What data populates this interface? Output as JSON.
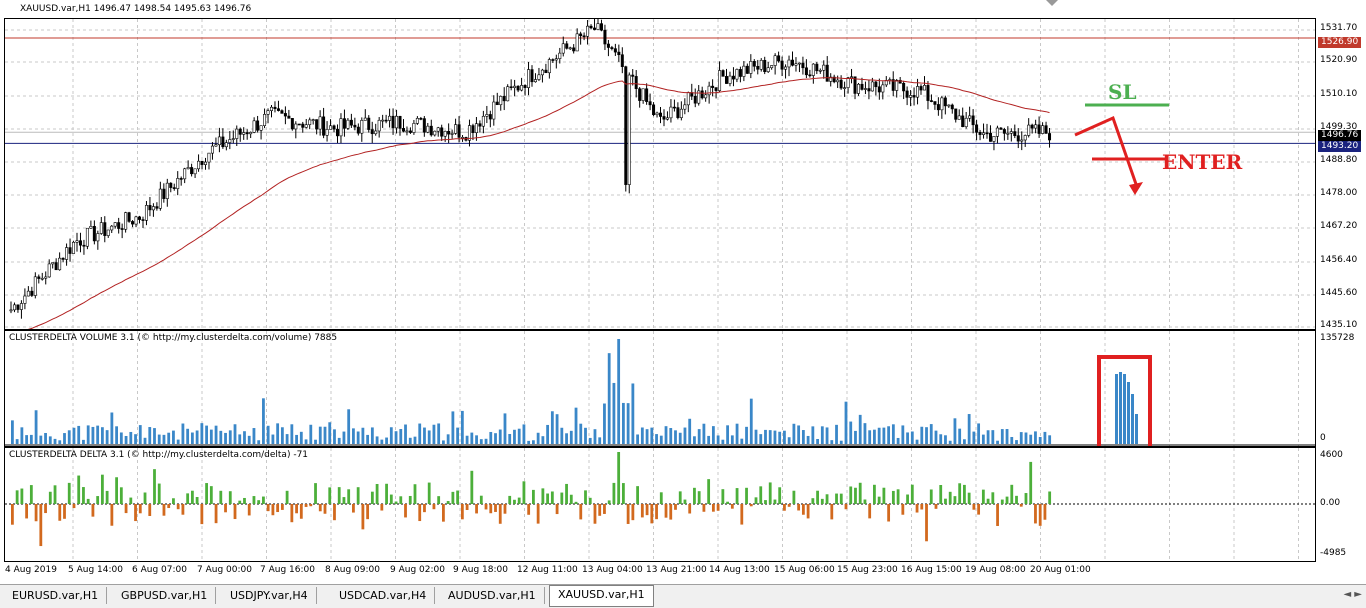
{
  "header": {
    "title": "XAUUSD.var,H1  1496.47 1498.54 1495.63 1496.76"
  },
  "price_scale": [
    "1531.70",
    "1520.90",
    "1510.10",
    "1499.30",
    "1488.80",
    "1478.00",
    "1467.20",
    "1456.40",
    "1445.60",
    "1435.10"
  ],
  "price_tags": {
    "resistance": "1526.90",
    "current": "1496.76",
    "support": "1493.20"
  },
  "volume_indicator": {
    "title": "CLUSTERDELTA VOLUME 3.1 (© http://my.clusterdelta.com/volume) 7885",
    "max_label": "135728",
    "min_label": "0"
  },
  "delta_indicator": {
    "title": "CLUSTERDELTA DELTA 3.1 (© http://my.clusterdelta.com/delta) -71",
    "max_label": "4600",
    "zero_label": "0.00",
    "min_label": "-4985"
  },
  "time_axis": [
    "4 Aug 2019",
    "5 Aug 14:00",
    "6 Aug 07:00",
    "7 Aug 00:00",
    "7 Aug 16:00",
    "8 Aug 09:00",
    "9 Aug 02:00",
    "9 Aug 18:00",
    "12 Aug 11:00",
    "13 Aug 04:00",
    "13 Aug 21:00",
    "14 Aug 13:00",
    "15 Aug 06:00",
    "15 Aug 23:00",
    "16 Aug 15:00",
    "19 Aug 08:00",
    "20 Aug 01:00"
  ],
  "annotations": {
    "sl_label": "SL",
    "enter_label": "ENTER"
  },
  "tabs": [
    {
      "label": "EURUSD.var,H1",
      "active": false
    },
    {
      "label": "GBPUSD.var,H1",
      "active": false
    },
    {
      "label": "USDJPY.var,H4",
      "active": false
    },
    {
      "label": "USDCAD.var,H4",
      "active": false
    },
    {
      "label": "AUDUSD.var,H1",
      "active": false
    },
    {
      "label": "XAUUSD.var,H1",
      "active": true
    }
  ],
  "tab_scroll": "◄ ►",
  "colors": {
    "bull_volume": "#3a87c8",
    "delta_positive": "#4caf3a",
    "delta_negative": "#d2691e",
    "moving_average": "#b22222",
    "resistance_line": "#c0392b",
    "support_line": "#1a237e",
    "annotation_red": "#e02020",
    "annotation_green": "#4caf50"
  },
  "chart_data": {
    "type": "candlestick",
    "symbol": "XAUUSD.var",
    "timeframe": "H1",
    "ylim": [
      1435.1,
      1531.7
    ],
    "series_outline": [
      {
        "t": "4 Aug 2019",
        "close": 1440
      },
      {
        "t": "5 Aug 14:00",
        "close": 1462
      },
      {
        "t": "6 Aug 07:00",
        "close": 1470
      },
      {
        "t": "7 Aug 00:00",
        "close": 1490
      },
      {
        "t": "7 Aug 16:00",
        "close": 1502
      },
      {
        "t": "8 Aug 09:00",
        "close": 1498
      },
      {
        "t": "9 Aug 02:00",
        "close": 1500
      },
      {
        "t": "9 Aug 18:00",
        "close": 1497
      },
      {
        "t": "12 Aug 11:00",
        "close": 1515
      },
      {
        "t": "13 Aug 04:00",
        "close": 1530
      },
      {
        "t": "13 Aug 21:00",
        "close": 1500
      },
      {
        "t": "14 Aug 13:00",
        "close": 1515
      },
      {
        "t": "15 Aug 06:00",
        "close": 1520
      },
      {
        "t": "15 Aug 23:00",
        "close": 1512
      },
      {
        "t": "16 Aug 15:00",
        "close": 1510
      },
      {
        "t": "19 Aug 08:00",
        "close": 1496
      },
      {
        "t": "20 Aug 01:00",
        "close": 1496.76
      }
    ],
    "horizontal_lines": [
      1526.9,
      1493.2
    ],
    "volume_ylim": [
      0,
      135728
    ],
    "delta_ylim": [
      -4985,
      4600
    ]
  }
}
